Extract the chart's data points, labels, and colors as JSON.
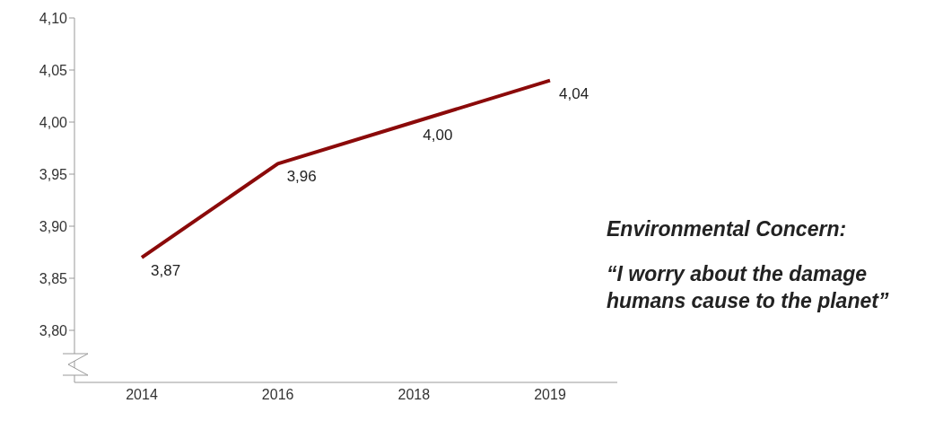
{
  "chart_data": {
    "type": "line",
    "categories": [
      "2014",
      "2016",
      "2018",
      "2019"
    ],
    "values": [
      3.87,
      3.96,
      4.0,
      4.04
    ],
    "color": "#8b0a0a",
    "value_labels": [
      "3,87",
      "3,96",
      "4,00",
      "4,04"
    ],
    "ylim": [
      3.75,
      4.1
    ],
    "yticks": [
      {
        "value": 3.8,
        "label": "3,80"
      },
      {
        "value": 3.85,
        "label": "3,85"
      },
      {
        "value": 3.9,
        "label": "3,90"
      },
      {
        "value": 3.95,
        "label": "3,95"
      },
      {
        "value": 4.0,
        "label": "4,00"
      },
      {
        "value": 4.05,
        "label": "4,05"
      },
      {
        "value": 4.1,
        "label": "4,10"
      }
    ],
    "grid": false,
    "legend": false,
    "marker": "none",
    "line_style": "solid",
    "annotations": [
      "Environmental Concern:",
      "“I worry about the damage humans cause to the planet”"
    ]
  }
}
